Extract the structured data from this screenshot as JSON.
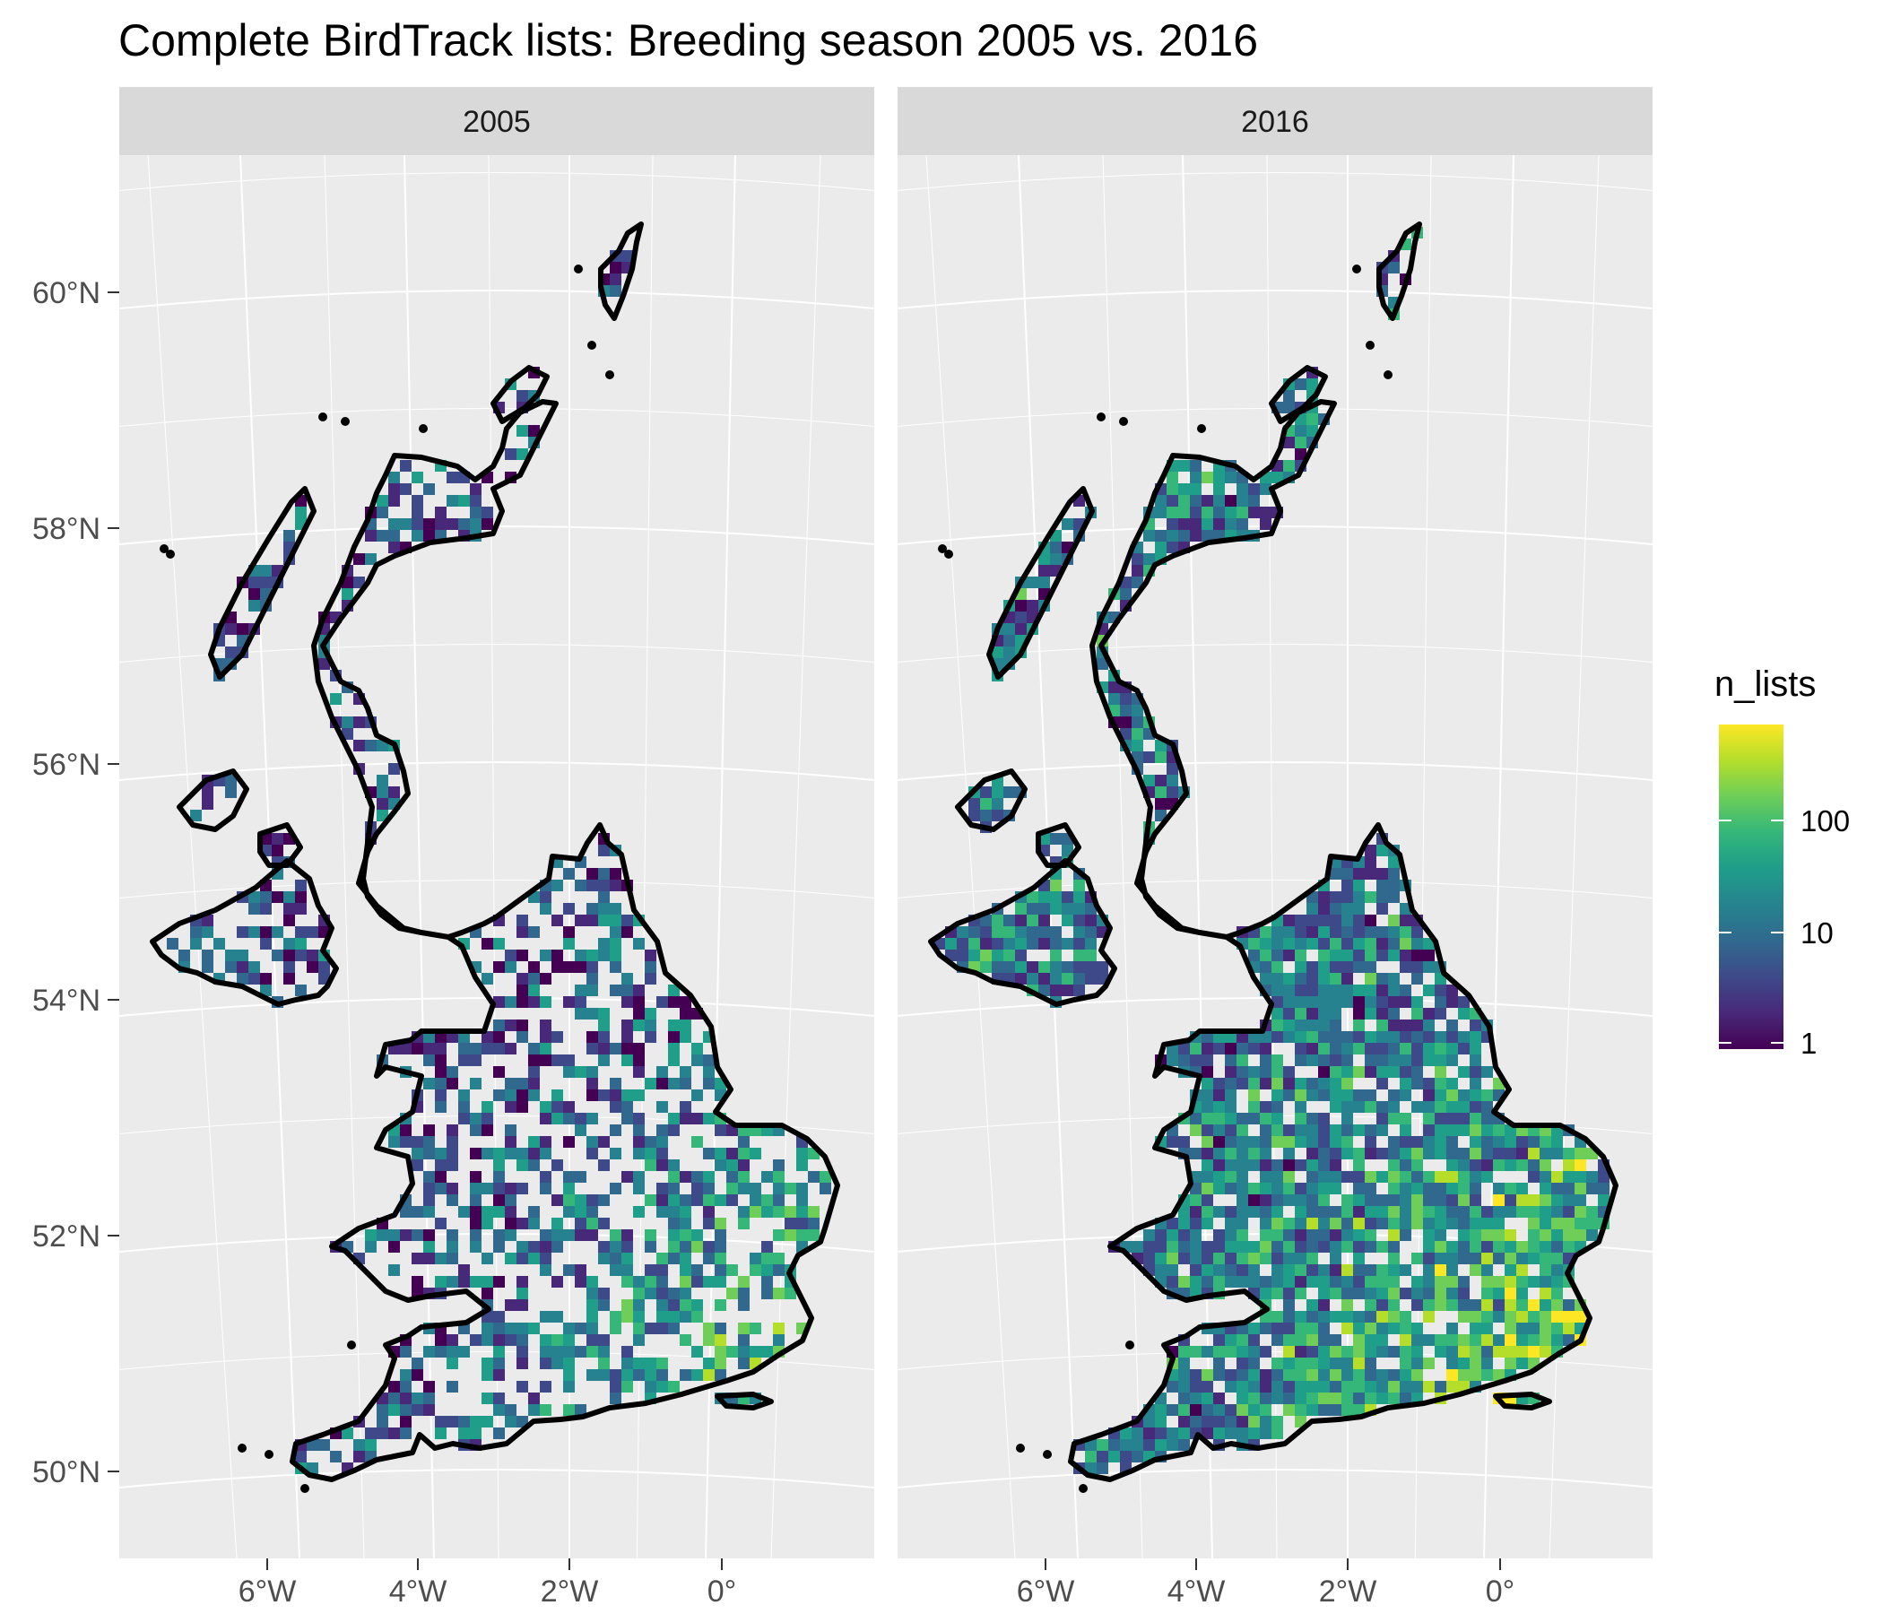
{
  "title": "Complete BirdTrack lists: Breeding season 2005 vs. 2016",
  "panels": [
    {
      "label": "2005",
      "density": 0.55,
      "bias": 0.0
    },
    {
      "label": "2016",
      "density": 0.88,
      "bias": 0.22
    }
  ],
  "axes": {
    "y_ticks": [
      "60°N",
      "58°N",
      "56°N",
      "54°N",
      "52°N",
      "50°N"
    ],
    "x_ticks": [
      "6°W",
      "4°W",
      "2°W",
      "0°"
    ]
  },
  "legend": {
    "title": "n_lists",
    "scale": "log",
    "ticks": [
      "100",
      "10",
      "1"
    ],
    "colormap": "viridis"
  },
  "colors": {
    "panel_bg": "#ebebeb",
    "strip_bg": "#d9d9d9",
    "grid": "#ffffff",
    "coast": "#000000",
    "viridis": [
      "#440154",
      "#482878",
      "#3e4989",
      "#31688e",
      "#26828e",
      "#1f9e89",
      "#35b779",
      "#6ece58",
      "#b5de2b",
      "#fde725"
    ]
  }
}
